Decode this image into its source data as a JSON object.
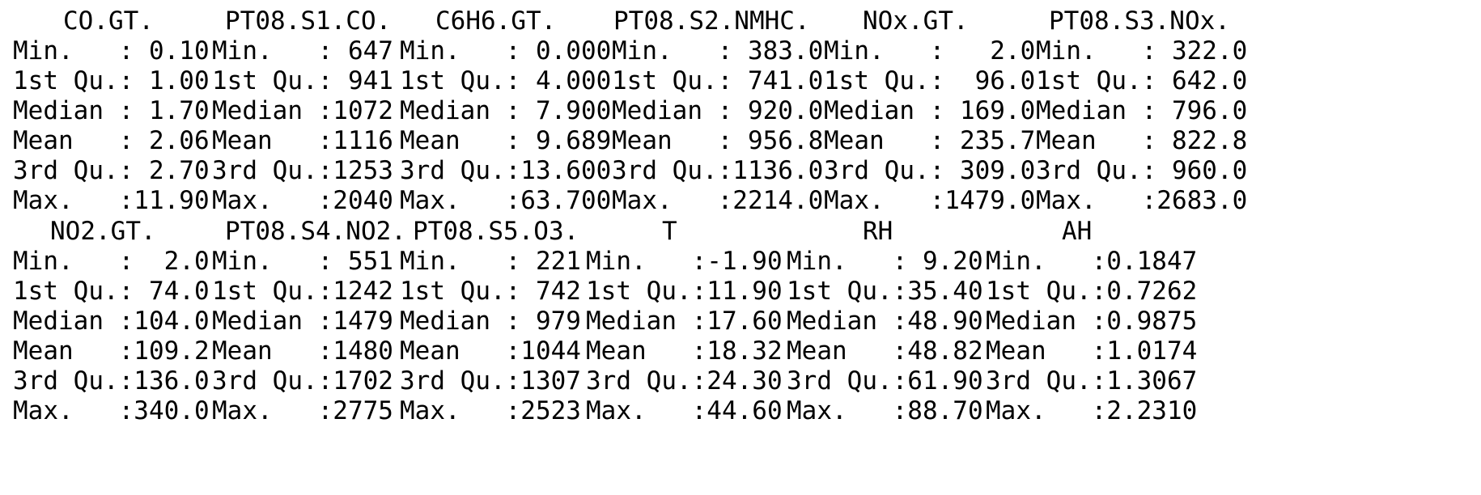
{
  "window": {
    "title": "R console summary output",
    "background_color": "#ffffff",
    "text_color": "#000000"
  },
  "summary": {
    "blocks": [
      {
        "columns": [
          {
            "name": "CO.GT.",
            "rows": [
              "Min.   : 0.10",
              "1st Qu.: 1.00",
              "Median : 1.70",
              "Mean   : 2.06",
              "3rd Qu.: 2.70",
              "Max.   :11.90"
            ]
          },
          {
            "name": "PT08.S1.CO.",
            "rows": [
              "Min.   : 647",
              "1st Qu.: 941",
              "Median :1072",
              "Mean   :1116",
              "3rd Qu.:1253",
              "Max.   :2040"
            ]
          },
          {
            "name": "C6H6.GT.",
            "rows": [
              "Min.   : 0.000",
              "1st Qu.: 4.000",
              "Median : 7.900",
              "Mean   : 9.689",
              "3rd Qu.:13.600",
              "Max.   :63.700"
            ]
          },
          {
            "name": "PT08.S2.NMHC.",
            "rows": [
              "Min.   : 383.0",
              "1st Qu.: 741.0",
              "Median : 920.0",
              "Mean   : 956.8",
              "3rd Qu.:1136.0",
              "Max.   :2214.0"
            ]
          },
          {
            "name": "NOx.GT.",
            "rows": [
              "Min.   :   2.0",
              "1st Qu.:  96.0",
              "Median : 169.0",
              "Mean   : 235.7",
              "3rd Qu.: 309.0",
              "Max.   :1479.0"
            ]
          },
          {
            "name": "PT08.S3.NOx.",
            "rows": [
              "Min.   : 322.0",
              "1st Qu.: 642.0",
              "Median : 796.0",
              "Mean   : 822.8",
              "3rd Qu.: 960.0",
              "Max.   :2683.0"
            ]
          }
        ]
      },
      {
        "columns": [
          {
            "name": "NO2.GT.",
            "rows": [
              "Min.   :  2.0",
              "1st Qu.: 74.0",
              "Median :104.0",
              "Mean   :109.2",
              "3rd Qu.:136.0",
              "Max.   :340.0"
            ]
          },
          {
            "name": "PT08.S4.NO2.",
            "rows": [
              "Min.   : 551",
              "1st Qu.:1242",
              "Median :1479",
              "Mean   :1480",
              "3rd Qu.:1702",
              "Max.   :2775"
            ]
          },
          {
            "name": "PT08.S5.O3.",
            "rows": [
              "Min.   : 221",
              "1st Qu.: 742",
              "Median : 979",
              "Mean   :1044",
              "3rd Qu.:1307",
              "Max.   :2523"
            ]
          },
          {
            "name": "T",
            "rows": [
              "Min.   :-1.90",
              "1st Qu.:11.90",
              "Median :17.60",
              "Mean   :18.32",
              "3rd Qu.:24.30",
              "Max.   :44.60"
            ]
          },
          {
            "name": "RH",
            "rows": [
              "Min.   : 9.20",
              "1st Qu.:35.40",
              "Median :48.90",
              "Mean   :48.82",
              "3rd Qu.:61.90",
              "Max.   :88.70"
            ]
          },
          {
            "name": "AH",
            "rows": [
              "Min.   :0.1847",
              "1st Qu.:0.7262",
              "Median :0.9875",
              "Mean   :1.0174",
              "3rd Qu.:1.3067",
              "Max.   :2.2310"
            ]
          }
        ]
      }
    ]
  }
}
